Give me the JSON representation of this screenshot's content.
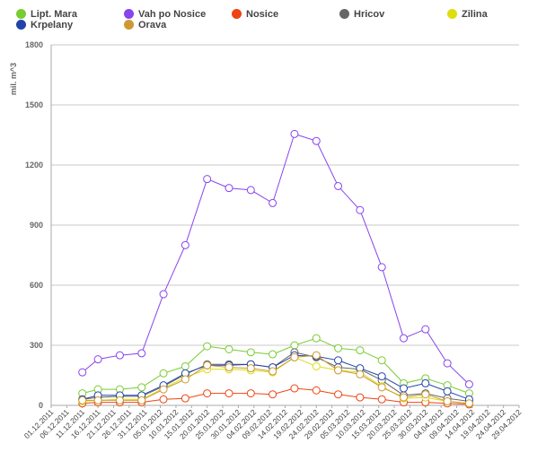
{
  "chart_data": {
    "type": "line",
    "title": "",
    "xlabel": "",
    "ylabel": "mil. m^3",
    "ylim": [
      0,
      1800
    ],
    "yticks": [
      0,
      300,
      600,
      900,
      1200,
      1500,
      1800
    ],
    "grid": true,
    "legend_position": "top",
    "x_dates": [
      "01.12.2011",
      "06.12.2011",
      "11.12.2011",
      "16.12.2011",
      "21.12.2011",
      "26.12.2011",
      "31.12.2011",
      "05.01.2012",
      "10.01.2012",
      "15.01.2012",
      "20.01.2012",
      "25.01.2012",
      "30.01.2012",
      "04.02.2012",
      "09.02.2012",
      "14.02.2012",
      "19.02.2012",
      "24.02.2012",
      "29.02.2012",
      "05.03.2012",
      "10.03.2012",
      "15.03.2012",
      "20.03.2012",
      "25.03.2012",
      "30.03.2012",
      "04.04.2012",
      "09.04.2012",
      "14.04.2012",
      "19.04.2012",
      "24.04.2012",
      "29.04.2012"
    ],
    "series": [
      {
        "name": "Lipt. Mara",
        "color": "#77cc33",
        "points": [
          [
            "11.12.2011",
            60
          ],
          [
            "16.12.2011",
            80
          ],
          [
            "23.12.2011",
            80
          ],
          [
            "30.12.2011",
            90
          ],
          [
            "06.01.2012",
            160
          ],
          [
            "13.01.2012",
            195
          ],
          [
            "20.01.2012",
            295
          ],
          [
            "27.01.2012",
            280
          ],
          [
            "03.02.2012",
            265
          ],
          [
            "10.02.2012",
            255
          ],
          [
            "17.02.2012",
            300
          ],
          [
            "24.02.2012",
            335
          ],
          [
            "02.03.2012",
            285
          ],
          [
            "09.03.2012",
            275
          ],
          [
            "16.03.2012",
            225
          ],
          [
            "23.03.2012",
            110
          ],
          [
            "30.03.2012",
            135
          ],
          [
            "06.04.2012",
            100
          ],
          [
            "13.04.2012",
            60
          ]
        ]
      },
      {
        "name": "Vah po Nosice",
        "color": "#8844ee",
        "points": [
          [
            "11.12.2011",
            165
          ],
          [
            "16.12.2011",
            230
          ],
          [
            "23.12.2011",
            250
          ],
          [
            "30.12.2011",
            260
          ],
          [
            "06.01.2012",
            555
          ],
          [
            "13.01.2012",
            800
          ],
          [
            "20.01.2012",
            1130
          ],
          [
            "27.01.2012",
            1085
          ],
          [
            "03.02.2012",
            1075
          ],
          [
            "10.02.2012",
            1010
          ],
          [
            "17.02.2012",
            1355
          ],
          [
            "24.02.2012",
            1320
          ],
          [
            "02.03.2012",
            1095
          ],
          [
            "09.03.2012",
            975
          ],
          [
            "16.03.2012",
            690
          ],
          [
            "23.03.2012",
            335
          ],
          [
            "30.03.2012",
            380
          ],
          [
            "06.04.2012",
            210
          ],
          [
            "13.04.2012",
            105
          ]
        ]
      },
      {
        "name": "Nosice",
        "color": "#ee4411",
        "points": [
          [
            "11.12.2011",
            10
          ],
          [
            "16.12.2011",
            15
          ],
          [
            "23.12.2011",
            15
          ],
          [
            "30.12.2011",
            15
          ],
          [
            "06.01.2012",
            30
          ],
          [
            "13.01.2012",
            35
          ],
          [
            "20.01.2012",
            60
          ],
          [
            "27.01.2012",
            60
          ],
          [
            "03.02.2012",
            60
          ],
          [
            "10.02.2012",
            55
          ],
          [
            "17.02.2012",
            85
          ],
          [
            "24.02.2012",
            75
          ],
          [
            "02.03.2012",
            55
          ],
          [
            "09.03.2012",
            40
          ],
          [
            "16.03.2012",
            30
          ],
          [
            "23.03.2012",
            15
          ],
          [
            "30.03.2012",
            15
          ],
          [
            "06.04.2012",
            10
          ],
          [
            "13.04.2012",
            5
          ]
        ]
      },
      {
        "name": "Hricov",
        "color": "#666666",
        "points": [
          [
            "11.12.2011",
            30
          ],
          [
            "16.12.2011",
            40
          ],
          [
            "23.12.2011",
            45
          ],
          [
            "30.12.2011",
            45
          ],
          [
            "06.01.2012",
            95
          ],
          [
            "13.01.2012",
            155
          ],
          [
            "20.01.2012",
            205
          ],
          [
            "27.01.2012",
            205
          ],
          [
            "03.02.2012",
            205
          ],
          [
            "10.02.2012",
            190
          ],
          [
            "17.02.2012",
            265
          ],
          [
            "24.02.2012",
            240
          ],
          [
            "02.03.2012",
            190
          ],
          [
            "09.03.2012",
            180
          ],
          [
            "16.03.2012",
            125
          ],
          [
            "23.03.2012",
            50
          ],
          [
            "30.03.2012",
            60
          ],
          [
            "06.04.2012",
            35
          ],
          [
            "13.04.2012",
            20
          ]
        ]
      },
      {
        "name": "Zilina",
        "color": "#dddd11",
        "points": [
          [
            "11.12.2011",
            20
          ],
          [
            "16.12.2011",
            25
          ],
          [
            "23.12.2011",
            30
          ],
          [
            "30.12.2011",
            30
          ],
          [
            "06.01.2012",
            85
          ],
          [
            "13.01.2012",
            140
          ],
          [
            "20.01.2012",
            180
          ],
          [
            "27.01.2012",
            180
          ],
          [
            "03.02.2012",
            175
          ],
          [
            "10.02.2012",
            165
          ],
          [
            "17.02.2012",
            240
          ],
          [
            "24.02.2012",
            195
          ],
          [
            "02.03.2012",
            175
          ],
          [
            "09.03.2012",
            165
          ],
          [
            "16.03.2012",
            95
          ],
          [
            "23.03.2012",
            35
          ],
          [
            "30.03.2012",
            40
          ],
          [
            "06.04.2012",
            20
          ],
          [
            "13.04.2012",
            10
          ]
        ]
      },
      {
        "name": "Krpelany",
        "color": "#2244aa",
        "points": [
          [
            "11.12.2011",
            30
          ],
          [
            "16.12.2011",
            50
          ],
          [
            "23.12.2011",
            50
          ],
          [
            "30.12.2011",
            50
          ],
          [
            "06.01.2012",
            100
          ],
          [
            "13.01.2012",
            160
          ],
          [
            "20.01.2012",
            200
          ],
          [
            "27.01.2012",
            200
          ],
          [
            "03.02.2012",
            205
          ],
          [
            "10.02.2012",
            190
          ],
          [
            "17.02.2012",
            250
          ],
          [
            "24.02.2012",
            245
          ],
          [
            "02.03.2012",
            225
          ],
          [
            "09.03.2012",
            185
          ],
          [
            "16.03.2012",
            145
          ],
          [
            "23.03.2012",
            85
          ],
          [
            "30.03.2012",
            110
          ],
          [
            "06.04.2012",
            70
          ],
          [
            "13.04.2012",
            30
          ]
        ]
      },
      {
        "name": "Orava",
        "color": "#cc9933",
        "points": [
          [
            "11.12.2011",
            25
          ],
          [
            "16.12.2011",
            25
          ],
          [
            "23.12.2011",
            25
          ],
          [
            "30.12.2011",
            25
          ],
          [
            "06.01.2012",
            80
          ],
          [
            "13.01.2012",
            130
          ],
          [
            "20.01.2012",
            200
          ],
          [
            "27.01.2012",
            190
          ],
          [
            "03.02.2012",
            185
          ],
          [
            "10.02.2012",
            170
          ],
          [
            "17.02.2012",
            240
          ],
          [
            "24.02.2012",
            250
          ],
          [
            "02.03.2012",
            175
          ],
          [
            "09.03.2012",
            155
          ],
          [
            "16.03.2012",
            90
          ],
          [
            "23.03.2012",
            40
          ],
          [
            "30.03.2012",
            55
          ],
          [
            "06.04.2012",
            20
          ],
          [
            "13.04.2012",
            10
          ]
        ]
      }
    ]
  }
}
